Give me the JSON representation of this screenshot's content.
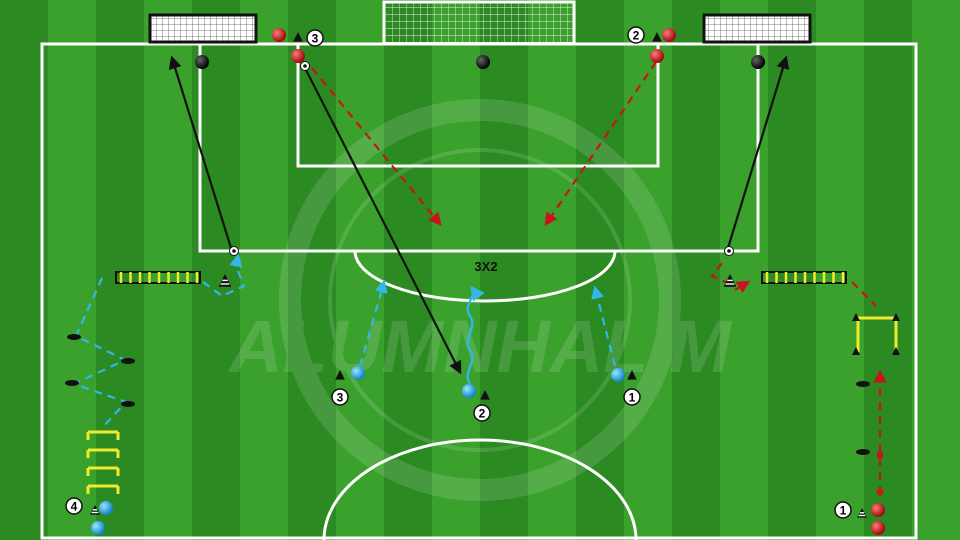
{
  "drill": {
    "title": "3X2",
    "watermark": "ALUMNHALIM"
  },
  "colors": {
    "grass_dark": "#2b8a22",
    "grass_light": "#3aa12c",
    "lines": "#ffffff",
    "team_blue": "#1fa8e6",
    "team_red": "#d01818",
    "neutral": "#111111",
    "pass_blue": "#35b6e8",
    "pass_red": "#c8141b",
    "ladder_yellow": "#f2ea2c"
  },
  "players": {
    "blue_1": "1",
    "blue_2": "2",
    "blue_3": "3",
    "blue_4": "4",
    "red_1": "1",
    "red_2": "2",
    "red_3": "3"
  }
}
